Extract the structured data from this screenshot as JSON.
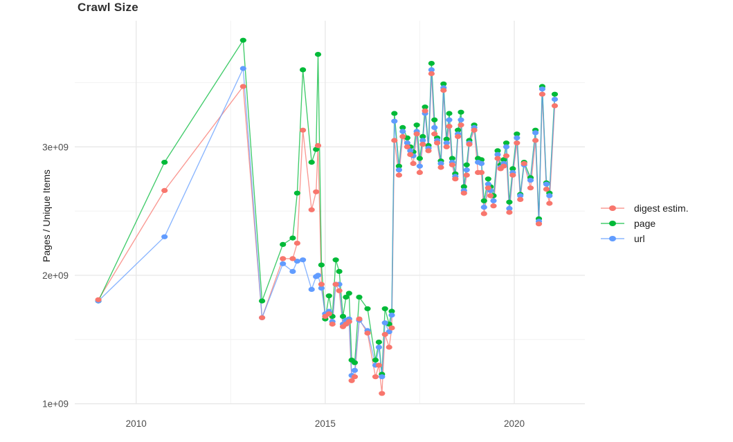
{
  "chart_data": {
    "type": "line",
    "title": "Crawl Size",
    "xlabel": "",
    "ylabel": "Pages / Unique Items",
    "grid": true,
    "legend_position": "right",
    "xlim": [
      2008.45,
      2021.9
    ],
    "ylim": [
      0.95,
      3.98
    ],
    "y_unit": "pages / items (value shown = billions, axis label style 1e+09)",
    "x_ticks": [
      {
        "label": "2010",
        "value": 2010
      },
      {
        "label": "2015",
        "value": 2015
      },
      {
        "label": "2020",
        "value": 2020
      }
    ],
    "x_minor_ticks": [
      2012.5,
      2017.5
    ],
    "y_ticks": [
      {
        "label": "1e+09",
        "value": 1
      },
      {
        "label": "2e+09",
        "value": 2
      },
      {
        "label": "3e+09",
        "value": 3
      }
    ],
    "y_minor_ticks": [
      1.5,
      2.5,
      3.5
    ],
    "series": [
      {
        "name": "digest estim.",
        "color": "#F8766D",
        "points": [
          [
            2009.0,
            1.81
          ],
          [
            2010.75,
            2.66
          ],
          [
            2012.83,
            3.47
          ],
          [
            2013.33,
            1.67
          ],
          [
            2013.88,
            2.13
          ],
          [
            2014.14,
            2.13
          ],
          [
            2014.26,
            2.25
          ],
          [
            2014.41,
            3.13
          ],
          [
            2014.64,
            2.51
          ],
          [
            2014.76,
            2.65
          ],
          [
            2014.81,
            3.01
          ],
          [
            2014.9,
            1.93
          ],
          [
            2015.0,
            1.68
          ],
          [
            2015.1,
            1.7
          ],
          [
            2015.19,
            1.62
          ],
          [
            2015.28,
            1.93
          ],
          [
            2015.37,
            1.88
          ],
          [
            2015.47,
            1.6
          ],
          [
            2015.55,
            1.62
          ],
          [
            2015.63,
            1.64
          ],
          [
            2015.7,
            1.18
          ],
          [
            2015.78,
            1.21
          ],
          [
            2015.9,
            1.66
          ],
          [
            2016.12,
            1.55
          ],
          [
            2016.33,
            1.21
          ],
          [
            2016.42,
            1.3
          ],
          [
            2016.5,
            1.08
          ],
          [
            2016.58,
            1.54
          ],
          [
            2016.69,
            1.44
          ],
          [
            2016.76,
            1.59
          ],
          [
            2016.83,
            3.05
          ],
          [
            2016.95,
            2.78
          ],
          [
            2017.05,
            3.08
          ],
          [
            2017.17,
            3.0
          ],
          [
            2017.25,
            2.94
          ],
          [
            2017.33,
            2.87
          ],
          [
            2017.42,
            3.1
          ],
          [
            2017.5,
            2.8
          ],
          [
            2017.58,
            3.02
          ],
          [
            2017.64,
            3.28
          ],
          [
            2017.73,
            2.97
          ],
          [
            2017.81,
            3.57
          ],
          [
            2017.89,
            3.1
          ],
          [
            2017.96,
            3.03
          ],
          [
            2018.06,
            2.84
          ],
          [
            2018.13,
            3.44
          ],
          [
            2018.21,
            3.0
          ],
          [
            2018.28,
            3.16
          ],
          [
            2018.36,
            2.86
          ],
          [
            2018.44,
            2.75
          ],
          [
            2018.51,
            3.08
          ],
          [
            2018.59,
            3.17
          ],
          [
            2018.67,
            2.64
          ],
          [
            2018.74,
            2.78
          ],
          [
            2018.81,
            3.02
          ],
          [
            2018.94,
            3.13
          ],
          [
            2019.04,
            2.8
          ],
          [
            2019.13,
            2.8
          ],
          [
            2019.2,
            2.48
          ],
          [
            2019.31,
            2.68
          ],
          [
            2019.37,
            2.62
          ],
          [
            2019.45,
            2.54
          ],
          [
            2019.56,
            2.91
          ],
          [
            2019.64,
            2.83
          ],
          [
            2019.72,
            2.85
          ],
          [
            2019.79,
            2.93
          ],
          [
            2019.87,
            2.49
          ],
          [
            2019.96,
            2.78
          ],
          [
            2020.07,
            3.03
          ],
          [
            2020.16,
            2.59
          ],
          [
            2020.26,
            2.87
          ],
          [
            2020.43,
            2.68
          ],
          [
            2020.56,
            3.05
          ],
          [
            2020.65,
            2.4
          ],
          [
            2020.74,
            3.41
          ],
          [
            2020.85,
            2.67
          ],
          [
            2020.93,
            2.56
          ],
          [
            2021.07,
            3.32
          ]
        ]
      },
      {
        "name": "page",
        "color": "#00BA38",
        "points": [
          [
            2009.0,
            1.8
          ],
          [
            2010.75,
            2.88
          ],
          [
            2012.83,
            3.83
          ],
          [
            2013.33,
            1.8
          ],
          [
            2013.88,
            2.24
          ],
          [
            2014.14,
            2.29
          ],
          [
            2014.26,
            2.64
          ],
          [
            2014.41,
            3.6
          ],
          [
            2014.64,
            2.88
          ],
          [
            2014.76,
            2.98
          ],
          [
            2014.81,
            3.72
          ],
          [
            2014.9,
            2.08
          ],
          [
            2015.0,
            1.66
          ],
          [
            2015.1,
            1.84
          ],
          [
            2015.19,
            1.68
          ],
          [
            2015.28,
            2.12
          ],
          [
            2015.37,
            2.03
          ],
          [
            2015.47,
            1.68
          ],
          [
            2015.55,
            1.83
          ],
          [
            2015.63,
            1.86
          ],
          [
            2015.7,
            1.34
          ],
          [
            2015.78,
            1.32
          ],
          [
            2015.9,
            1.83
          ],
          [
            2016.12,
            1.74
          ],
          [
            2016.33,
            1.34
          ],
          [
            2016.42,
            1.48
          ],
          [
            2016.5,
            1.23
          ],
          [
            2016.58,
            1.74
          ],
          [
            2016.69,
            1.62
          ],
          [
            2016.76,
            1.72
          ],
          [
            2016.83,
            3.26
          ],
          [
            2016.95,
            2.85
          ],
          [
            2017.05,
            3.15
          ],
          [
            2017.17,
            3.07
          ],
          [
            2017.25,
            3.0
          ],
          [
            2017.33,
            2.96
          ],
          [
            2017.42,
            3.17
          ],
          [
            2017.5,
            2.91
          ],
          [
            2017.58,
            3.08
          ],
          [
            2017.64,
            3.31
          ],
          [
            2017.73,
            3.01
          ],
          [
            2017.81,
            3.65
          ],
          [
            2017.89,
            3.21
          ],
          [
            2017.96,
            3.07
          ],
          [
            2018.06,
            2.89
          ],
          [
            2018.13,
            3.49
          ],
          [
            2018.21,
            3.06
          ],
          [
            2018.28,
            3.26
          ],
          [
            2018.36,
            2.91
          ],
          [
            2018.44,
            2.79
          ],
          [
            2018.51,
            3.13
          ],
          [
            2018.59,
            3.27
          ],
          [
            2018.67,
            2.69
          ],
          [
            2018.74,
            2.86
          ],
          [
            2018.81,
            3.05
          ],
          [
            2018.94,
            3.17
          ],
          [
            2019.04,
            2.91
          ],
          [
            2019.13,
            2.9
          ],
          [
            2019.2,
            2.58
          ],
          [
            2019.31,
            2.75
          ],
          [
            2019.37,
            2.69
          ],
          [
            2019.45,
            2.62
          ],
          [
            2019.56,
            2.97
          ],
          [
            2019.64,
            2.86
          ],
          [
            2019.72,
            2.9
          ],
          [
            2019.79,
            3.03
          ],
          [
            2019.87,
            2.57
          ],
          [
            2019.96,
            2.83
          ],
          [
            2020.07,
            3.1
          ],
          [
            2020.16,
            2.63
          ],
          [
            2020.26,
            2.88
          ],
          [
            2020.43,
            2.76
          ],
          [
            2020.56,
            3.13
          ],
          [
            2020.65,
            2.44
          ],
          [
            2020.74,
            3.47
          ],
          [
            2020.85,
            2.72
          ],
          [
            2020.93,
            2.64
          ],
          [
            2021.07,
            3.41
          ]
        ]
      },
      {
        "name": "url",
        "color": "#619CFF",
        "points": [
          [
            2009.0,
            1.8
          ],
          [
            2010.75,
            2.3
          ],
          [
            2012.83,
            3.61
          ],
          [
            2013.33,
            1.67
          ],
          [
            2013.88,
            2.09
          ],
          [
            2014.14,
            2.03
          ],
          [
            2014.26,
            2.11
          ],
          [
            2014.41,
            2.12
          ],
          [
            2014.64,
            1.89
          ],
          [
            2014.76,
            1.99
          ],
          [
            2014.81,
            2.0
          ],
          [
            2014.9,
            1.9
          ],
          [
            2015.0,
            1.7
          ],
          [
            2015.1,
            1.72
          ],
          [
            2015.19,
            1.64
          ],
          [
            2015.28,
            1.93
          ],
          [
            2015.37,
            1.93
          ],
          [
            2015.47,
            1.62
          ],
          [
            2015.55,
            1.65
          ],
          [
            2015.63,
            1.66
          ],
          [
            2015.7,
            1.22
          ],
          [
            2015.78,
            1.26
          ],
          [
            2015.9,
            1.65
          ],
          [
            2016.12,
            1.57
          ],
          [
            2016.33,
            1.3
          ],
          [
            2016.42,
            1.44
          ],
          [
            2016.5,
            1.21
          ],
          [
            2016.58,
            1.63
          ],
          [
            2016.69,
            1.56
          ],
          [
            2016.76,
            1.69
          ],
          [
            2016.83,
            3.2
          ],
          [
            2016.95,
            2.82
          ],
          [
            2017.05,
            3.12
          ],
          [
            2017.17,
            3.03
          ],
          [
            2017.25,
            2.97
          ],
          [
            2017.33,
            2.93
          ],
          [
            2017.42,
            3.12
          ],
          [
            2017.5,
            2.85
          ],
          [
            2017.58,
            3.05
          ],
          [
            2017.64,
            3.26
          ],
          [
            2017.73,
            2.99
          ],
          [
            2017.81,
            3.6
          ],
          [
            2017.89,
            3.15
          ],
          [
            2017.96,
            3.05
          ],
          [
            2018.06,
            2.87
          ],
          [
            2018.13,
            3.46
          ],
          [
            2018.21,
            3.03
          ],
          [
            2018.28,
            3.21
          ],
          [
            2018.36,
            2.88
          ],
          [
            2018.44,
            2.77
          ],
          [
            2018.51,
            3.1
          ],
          [
            2018.59,
            3.21
          ],
          [
            2018.67,
            2.66
          ],
          [
            2018.74,
            2.82
          ],
          [
            2018.81,
            3.03
          ],
          [
            2018.94,
            3.15
          ],
          [
            2019.04,
            2.88
          ],
          [
            2019.13,
            2.87
          ],
          [
            2019.2,
            2.53
          ],
          [
            2019.31,
            2.71
          ],
          [
            2019.37,
            2.66
          ],
          [
            2019.45,
            2.58
          ],
          [
            2019.56,
            2.94
          ],
          [
            2019.64,
            2.84
          ],
          [
            2019.72,
            2.87
          ],
          [
            2019.79,
            3.0
          ],
          [
            2019.87,
            2.52
          ],
          [
            2019.96,
            2.8
          ],
          [
            2020.07,
            3.07
          ],
          [
            2020.16,
            2.62
          ],
          [
            2020.26,
            2.86
          ],
          [
            2020.43,
            2.74
          ],
          [
            2020.56,
            3.11
          ],
          [
            2020.65,
            2.42
          ],
          [
            2020.74,
            3.45
          ],
          [
            2020.85,
            2.71
          ],
          [
            2020.93,
            2.62
          ],
          [
            2021.07,
            3.37
          ]
        ]
      }
    ],
    "style": {
      "background": "#FFFFFF",
      "grid_major_color": "#E7E7E7",
      "grid_minor_color": "#F3F3F3",
      "tick_label_color": "#4D4D4D",
      "title_color": "#2F2F2F",
      "axis_title_color": "#1A1A1A",
      "legend_text_color": "#1A1A1A"
    }
  }
}
